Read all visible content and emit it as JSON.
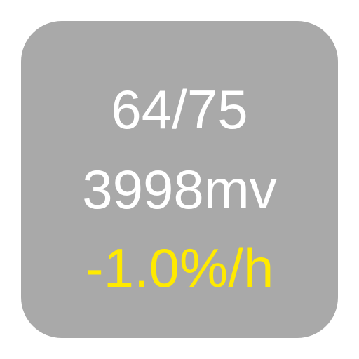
{
  "widget": {
    "background_color": "#a9a9a9",
    "line_1": {
      "text": "64/75",
      "color": "#ffffff"
    },
    "line_2": {
      "text": "3998mv",
      "color": "#ffffff"
    },
    "line_3": {
      "text": "-1.0%/h",
      "color": "#ffea00"
    }
  }
}
